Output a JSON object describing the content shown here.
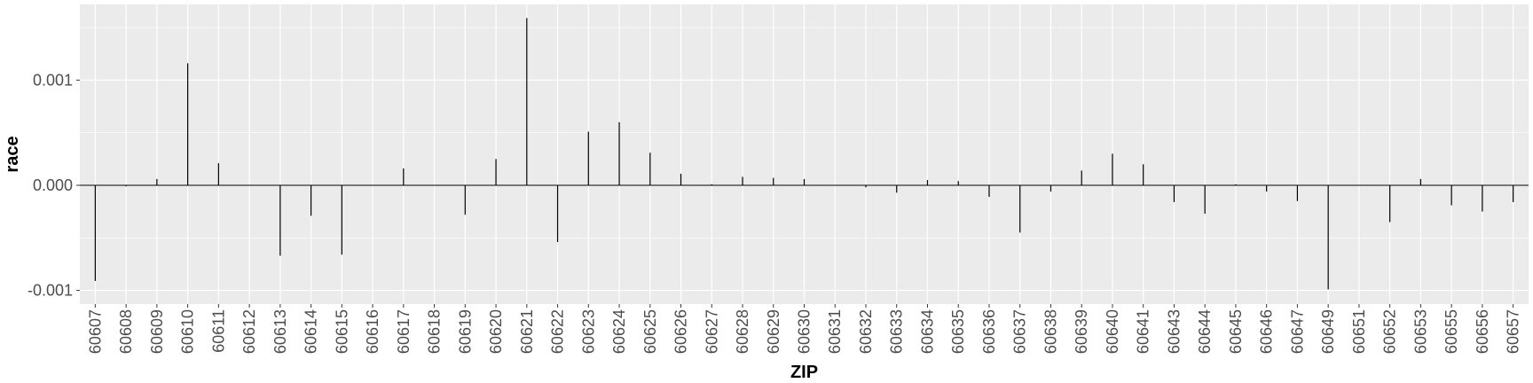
{
  "chart_data": {
    "type": "bar",
    "title": "",
    "xlabel": "ZIP",
    "ylabel": "race",
    "ylim": [
      -0.00113,
      0.00172
    ],
    "y_ticks": [
      -0.001,
      0.0,
      0.001
    ],
    "y_tick_labels": [
      "-0.001",
      "0.000",
      "0.001"
    ],
    "grid": true,
    "legend": "none",
    "zero_line": true,
    "colors": {
      "panel_background": "#ebebeb",
      "grid_major": "#ffffff",
      "bar": "#000000",
      "tick_label": "#4d4d4d",
      "axis_title": "#000000"
    },
    "categories": [
      "60607",
      "60608",
      "60609",
      "60610",
      "60611",
      "60612",
      "60613",
      "60614",
      "60615",
      "60616",
      "60617",
      "60618",
      "60619",
      "60620",
      "60621",
      "60622",
      "60623",
      "60624",
      "60625",
      "60626",
      "60627",
      "60628",
      "60629",
      "60630",
      "60631",
      "60632",
      "60633",
      "60634",
      "60635",
      "60636",
      "60637",
      "60638",
      "60639",
      "60640",
      "60641",
      "60643",
      "60644",
      "60645",
      "60646",
      "60647",
      "60649",
      "60651",
      "60652",
      "60653",
      "60655",
      "60656",
      "60657"
    ],
    "values": [
      -0.00091,
      -1e-05,
      6e-05,
      0.00116,
      0.00021,
      0.0,
      -0.00067,
      -0.00029,
      -0.00066,
      0.0,
      0.00016,
      0.0,
      -0.00028,
      0.00025,
      0.00159,
      -0.00054,
      0.00051,
      0.0006,
      0.00031,
      0.00011,
      1e-05,
      8e-05,
      7e-05,
      6e-05,
      0.0,
      -2e-05,
      -7e-05,
      5e-05,
      4e-05,
      -0.00011,
      -0.00045,
      -6e-05,
      0.00014,
      0.0003,
      0.0002,
      -0.00016,
      -0.00027,
      1e-05,
      -6e-05,
      -0.00015,
      -0.00099,
      0.0,
      -0.00035,
      6e-05,
      -0.00019,
      -0.00025,
      -0.00016
    ]
  }
}
